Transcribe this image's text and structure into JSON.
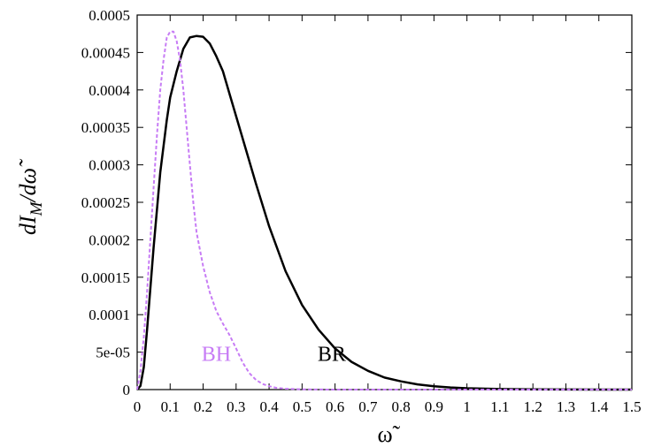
{
  "chart_data": {
    "type": "line",
    "title": "",
    "xlabel": "ω̃",
    "ylabel": {
      "main": "dI",
      "sub": "M",
      "tail": "/dω̃"
    },
    "xlim": [
      0,
      1.5
    ],
    "ylim": [
      0,
      0.0005
    ],
    "x_ticks": [
      "0",
      "0.1",
      "0.2",
      "0.3",
      "0.4",
      "0.5",
      "0.6",
      "0.7",
      "0.8",
      "0.9",
      "1",
      "1.1",
      "1.2",
      "1.3",
      "1.4",
      "1.5"
    ],
    "y_ticks": [
      "0",
      "5e-05",
      "0.0001",
      "0.00015",
      "0.0002",
      "0.00025",
      "0.0003",
      "0.00035",
      "0.0004",
      "0.00045",
      "0.0005"
    ],
    "grid": false,
    "series": [
      {
        "name": "BR",
        "color": "#000000",
        "style": "solid",
        "label_pos": [
          0.59,
          4.8e-05
        ],
        "x": [
          0,
          0.01,
          0.02,
          0.03,
          0.05,
          0.07,
          0.09,
          0.1,
          0.12,
          0.14,
          0.16,
          0.18,
          0.2,
          0.22,
          0.24,
          0.26,
          0.28,
          0.3,
          0.33,
          0.36,
          0.4,
          0.45,
          0.5,
          0.55,
          0.6,
          0.65,
          0.7,
          0.75,
          0.8,
          0.85,
          0.9,
          0.95,
          1.0,
          1.1,
          1.2,
          1.3,
          1.4,
          1.5
        ],
        "values": [
          0,
          5e-06,
          3e-05,
          8e-05,
          0.00019,
          0.00029,
          0.00036,
          0.00039,
          0.000425,
          0.000455,
          0.00047,
          0.000472,
          0.000471,
          0.000462,
          0.000445,
          0.000425,
          0.000395,
          0.000365,
          0.00032,
          0.000275,
          0.000218,
          0.000158,
          0.000113,
          8e-05,
          5.5e-05,
          3.7e-05,
          2.5e-05,
          1.6e-05,
          1.1e-05,
          7e-06,
          4.5e-06,
          2.8e-06,
          1.8e-06,
          7e-07,
          3e-07,
          1.2e-07,
          5e-08,
          2e-08
        ]
      },
      {
        "name": "BH",
        "color": "#c77cf5",
        "style": "dashed",
        "label_pos": [
          0.24,
          4.8e-05
        ],
        "x": [
          0,
          0.01,
          0.02,
          0.03,
          0.04,
          0.05,
          0.06,
          0.07,
          0.08,
          0.09,
          0.1,
          0.11,
          0.12,
          0.13,
          0.14,
          0.15,
          0.16,
          0.17,
          0.18,
          0.2,
          0.22,
          0.24,
          0.26,
          0.28,
          0.3,
          0.32,
          0.34,
          0.36,
          0.38,
          0.4,
          0.42,
          0.45,
          0.5,
          0.55,
          0.6,
          0.7,
          0.8,
          1.0,
          1.2,
          1.5
        ],
        "values": [
          0,
          2.5e-05,
          7e-05,
          0.00013,
          0.0002,
          0.00027,
          0.00034,
          0.0004,
          0.00044,
          0.00047,
          0.000478,
          0.000478,
          0.000465,
          0.00044,
          0.0004,
          0.00035,
          0.0003,
          0.00025,
          0.00021,
          0.000165,
          0.00013,
          0.000105,
          8.8e-05,
          7.3e-05,
          5.5e-05,
          3.6e-05,
          2.2e-05,
          1.3e-05,
          7.5e-06,
          4.5e-06,
          2.5e-06,
          1.2e-06,
          4e-07,
          1.5e-07,
          5e-08,
          1e-08,
          0,
          0,
          0,
          0
        ]
      }
    ]
  }
}
